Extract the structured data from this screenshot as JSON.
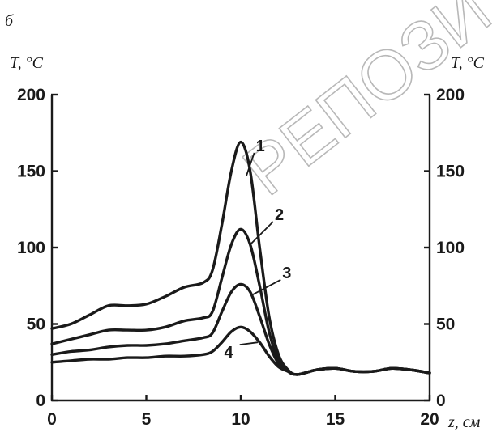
{
  "panel_label": "б",
  "watermark": "РЕПОЗИ",
  "chart_data": {
    "type": "line",
    "title": "",
    "ylabel_left": "T, °C",
    "ylabel_right": "T, °C",
    "xlabel": "z, см",
    "xlim": [
      0,
      20
    ],
    "ylim": [
      0,
      200
    ],
    "x_ticks": [
      0,
      5,
      10,
      15,
      20
    ],
    "y_ticks": [
      0,
      50,
      100,
      150,
      200
    ],
    "grid": false,
    "series": [
      {
        "name": "1",
        "x": [
          0,
          1,
          2,
          3,
          4,
          5,
          6,
          7,
          8,
          8.5,
          9,
          9.5,
          10,
          10.5,
          11,
          11.5,
          12,
          12.5,
          13,
          14,
          15,
          16,
          17,
          18,
          19,
          20
        ],
        "y": [
          47,
          50,
          56,
          62,
          62,
          63,
          68,
          74,
          77,
          85,
          115,
          150,
          169,
          150,
          100,
          55,
          30,
          20,
          17,
          20,
          21,
          19,
          19,
          21,
          20,
          18
        ]
      },
      {
        "name": "2",
        "x": [
          0,
          1,
          2,
          3,
          4,
          5,
          6,
          7,
          8,
          8.5,
          9,
          9.5,
          10,
          10.5,
          11,
          11.5,
          12,
          12.5,
          13,
          14,
          15,
          16,
          17,
          18,
          19,
          20
        ],
        "y": [
          37,
          40,
          43,
          46,
          46,
          46,
          48,
          52,
          54,
          58,
          80,
          102,
          112,
          102,
          75,
          45,
          26,
          19,
          17,
          20,
          21,
          19,
          19,
          21,
          20,
          18
        ]
      },
      {
        "name": "3",
        "x": [
          0,
          1,
          2,
          3,
          4,
          5,
          6,
          7,
          8,
          8.5,
          9,
          9.5,
          10,
          10.5,
          11,
          11.5,
          12,
          12.5,
          13,
          14,
          15,
          16,
          17,
          18,
          19,
          20
        ],
        "y": [
          30,
          32,
          33,
          35,
          36,
          36,
          37,
          39,
          41,
          44,
          58,
          71,
          76,
          71,
          55,
          37,
          24,
          19,
          17,
          20,
          21,
          19,
          19,
          21,
          20,
          18
        ]
      },
      {
        "name": "4",
        "x": [
          0,
          1,
          2,
          3,
          4,
          5,
          6,
          7,
          8,
          8.5,
          9,
          9.5,
          10,
          10.5,
          11,
          11.5,
          12,
          12.5,
          13,
          14,
          15,
          16,
          17,
          18,
          19,
          20
        ],
        "y": [
          25,
          26,
          27,
          27,
          28,
          28,
          29,
          29,
          30,
          32,
          38,
          45,
          48,
          45,
          38,
          29,
          22,
          19,
          17,
          20,
          21,
          19,
          19,
          21,
          20,
          18
        ]
      }
    ],
    "curve_labels": [
      {
        "name": "1",
        "x": 10.8,
        "y": 163,
        "anchor_x": 10.3,
        "anchor_y": 147
      },
      {
        "name": "2",
        "x": 11.8,
        "y": 118,
        "anchor_x": 10.5,
        "anchor_y": 102
      },
      {
        "name": "3",
        "x": 12.2,
        "y": 80,
        "anchor_x": 10.6,
        "anchor_y": 69
      },
      {
        "name": "4",
        "x": 9.6,
        "y": 28,
        "anchor_x": 10.9,
        "anchor_y": 38
      }
    ]
  }
}
